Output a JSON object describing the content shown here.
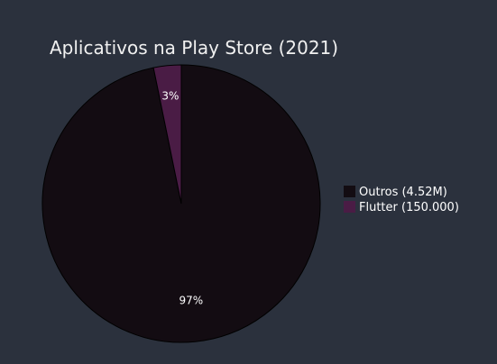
{
  "chart_data": {
    "type": "pie",
    "title": "Aplicativos na Play Store (2021)",
    "labels": [
      "Outros (4.52M)",
      "Flutter (150.000)"
    ],
    "values": [
      4520000,
      150000
    ],
    "percent_labels": [
      "97%",
      "3%"
    ],
    "colors": [
      "#130c12",
      "#4a1c45"
    ],
    "legend_position": "right"
  },
  "colors": {
    "background": "#2b313d",
    "slice_border": "#000000",
    "text": "#ffffff"
  }
}
